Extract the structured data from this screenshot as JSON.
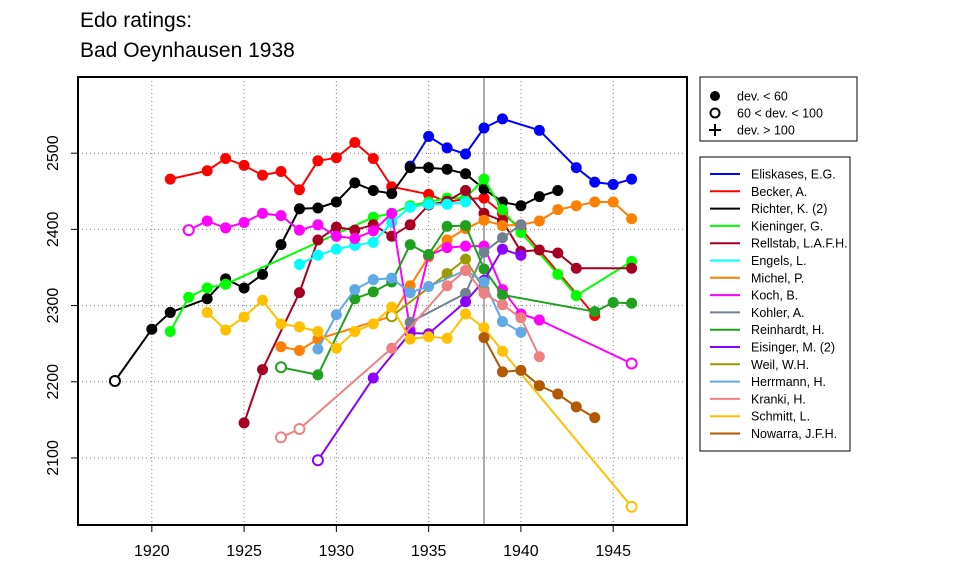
{
  "title_line1": "Edo ratings:",
  "title_line2": "Bad Oeynhausen 1938",
  "marker_legend": [
    {
      "symbol": "filled-circle",
      "label": "dev. < 60"
    },
    {
      "symbol": "open-circle",
      "label": "60 < dev. < 100"
    },
    {
      "symbol": "plus",
      "label": "dev. > 100"
    }
  ],
  "chart_data": {
    "type": "line",
    "title": "Edo ratings: Bad Oeynhausen 1938",
    "xlabel": "",
    "ylabel": "",
    "xlim": [
      1916,
      1949
    ],
    "ylim": [
      2012,
      2600
    ],
    "xticks": [
      1920,
      1925,
      1930,
      1935,
      1940,
      1945
    ],
    "yticks": [
      2100,
      2200,
      2300,
      2400,
      2500
    ],
    "grid": true,
    "legend_position": "right",
    "vline_x": 1938,
    "series": [
      {
        "name": "Eliskases, E.G.",
        "color": "#0000FF",
        "points": [
          [
            1934,
            2483
          ],
          [
            1935,
            2522
          ],
          [
            1936,
            2507
          ],
          [
            1937,
            2499
          ],
          [
            1938,
            2533
          ],
          [
            1939,
            2545
          ],
          [
            1941,
            2530
          ],
          [
            1943,
            2481
          ],
          [
            1944,
            2462
          ],
          [
            1945,
            2459
          ],
          [
            1946,
            2466
          ]
        ],
        "open": []
      },
      {
        "name": "Becker, A.",
        "color": "#FF0000",
        "points": [
          [
            1921,
            2466
          ],
          [
            1923,
            2477
          ],
          [
            1924,
            2493
          ],
          [
            1925,
            2484
          ],
          [
            1926,
            2471
          ],
          [
            1927,
            2476
          ],
          [
            1928,
            2452
          ],
          [
            1929,
            2490
          ],
          [
            1930,
            2494
          ],
          [
            1931,
            2514
          ],
          [
            1932,
            2493
          ],
          [
            1933,
            2456
          ],
          [
            1935,
            2446
          ],
          [
            1936,
            2436
          ],
          [
            1937,
            2440
          ],
          [
            1938,
            2441
          ],
          [
            1939,
            2421
          ],
          [
            1940,
            2401
          ],
          [
            1944,
            2287
          ]
        ],
        "open": []
      },
      {
        "name": "Richter, K. (2)",
        "color": "#000000",
        "points": [
          [
            1918,
            2201
          ],
          [
            1920,
            2269
          ],
          [
            1921,
            2291
          ],
          [
            1923,
            2309
          ],
          [
            1924,
            2335
          ],
          [
            1925,
            2323
          ],
          [
            1926,
            2341
          ],
          [
            1927,
            2380
          ],
          [
            1928,
            2427
          ],
          [
            1929,
            2428
          ],
          [
            1930,
            2436
          ],
          [
            1931,
            2461
          ],
          [
            1932,
            2451
          ],
          [
            1933,
            2447
          ],
          [
            1934,
            2481
          ],
          [
            1935,
            2481
          ],
          [
            1936,
            2479
          ],
          [
            1937,
            2473
          ],
          [
            1938,
            2453
          ],
          [
            1939,
            2436
          ],
          [
            1940,
            2431
          ],
          [
            1941,
            2443
          ],
          [
            1942,
            2451
          ]
        ],
        "open": [
          0
        ]
      },
      {
        "name": "Kieninger, G.",
        "color": "#00FF00",
        "points": [
          [
            1921,
            2266
          ],
          [
            1922,
            2311
          ],
          [
            1923,
            2323
          ],
          [
            1924,
            2328
          ],
          [
            1932,
            2416
          ],
          [
            1933,
            2421
          ],
          [
            1934,
            2431
          ],
          [
            1935,
            2436
          ],
          [
            1936,
            2441
          ],
          [
            1937,
            2441
          ],
          [
            1938,
            2466
          ],
          [
            1939,
            2426
          ],
          [
            1940,
            2396
          ],
          [
            1942,
            2341
          ],
          [
            1943,
            2313
          ],
          [
            1946,
            2358
          ]
        ],
        "open": []
      },
      {
        "name": "Rellstab, L.A.F.H.",
        "color": "#A50021",
        "points": [
          [
            1925,
            2146
          ],
          [
            1926,
            2216
          ],
          [
            1928,
            2317
          ],
          [
            1929,
            2386
          ],
          [
            1930,
            2403
          ],
          [
            1931,
            2399
          ],
          [
            1932,
            2406
          ],
          [
            1933,
            2391
          ],
          [
            1934,
            2406
          ],
          [
            1935,
            2432
          ],
          [
            1936,
            2437
          ],
          [
            1937,
            2451
          ],
          [
            1938,
            2421
          ],
          [
            1939,
            2411
          ],
          [
            1940,
            2371
          ],
          [
            1941,
            2373
          ],
          [
            1942,
            2369
          ],
          [
            1943,
            2349
          ],
          [
            1946,
            2349
          ]
        ],
        "open": []
      },
      {
        "name": "Engels, L.",
        "color": "#00FFFF",
        "points": [
          [
            1928,
            2354
          ],
          [
            1929,
            2366
          ],
          [
            1930,
            2374
          ],
          [
            1931,
            2379
          ],
          [
            1932,
            2383
          ],
          [
            1933,
            2409
          ],
          [
            1934,
            2429
          ],
          [
            1935,
            2433
          ],
          [
            1936,
            2433
          ],
          [
            1937,
            2436
          ]
        ],
        "open": []
      },
      {
        "name": "Michel, P.",
        "color": "#FF7F00",
        "points": [
          [
            1927,
            2246
          ],
          [
            1928,
            2241
          ],
          [
            1929,
            2256
          ],
          [
            1933,
            2286
          ],
          [
            1934,
            2326
          ],
          [
            1935,
            2364
          ],
          [
            1936,
            2386
          ],
          [
            1937,
            2401
          ],
          [
            1938,
            2412
          ],
          [
            1939,
            2405
          ],
          [
            1940,
            2406
          ],
          [
            1941,
            2411
          ],
          [
            1942,
            2426
          ],
          [
            1943,
            2431
          ],
          [
            1944,
            2436
          ],
          [
            1945,
            2436
          ],
          [
            1946,
            2414
          ]
        ],
        "open": []
      },
      {
        "name": "Koch, B.",
        "color": "#FF00FF",
        "points": [
          [
            1922,
            2399
          ],
          [
            1923,
            2411
          ],
          [
            1924,
            2402
          ],
          [
            1925,
            2409
          ],
          [
            1926,
            2421
          ],
          [
            1927,
            2418
          ],
          [
            1928,
            2399
          ],
          [
            1929,
            2406
          ],
          [
            1930,
            2391
          ],
          [
            1931,
            2388
          ],
          [
            1932,
            2398
          ],
          [
            1933,
            2421
          ],
          [
            1934,
            2268
          ],
          [
            1935,
            2366
          ],
          [
            1936,
            2376
          ],
          [
            1937,
            2378
          ],
          [
            1938,
            2378
          ],
          [
            1939,
            2321
          ],
          [
            1940,
            2289
          ],
          [
            1941,
            2281
          ],
          [
            1946,
            2224
          ]
        ],
        "open": [
          0,
          20
        ]
      },
      {
        "name": "Kohler, A.",
        "color": "#708090",
        "points": [
          [
            1934,
            2278
          ],
          [
            1937,
            2316
          ],
          [
            1938,
            2370
          ],
          [
            1939,
            2389
          ],
          [
            1940,
            2406
          ]
        ],
        "open": []
      },
      {
        "name": "Reinhardt, H.",
        "color": "#1FA01F",
        "points": [
          [
            1927,
            2219
          ],
          [
            1929,
            2209
          ],
          [
            1931,
            2309
          ],
          [
            1932,
            2318
          ],
          [
            1933,
            2331
          ],
          [
            1934,
            2380
          ],
          [
            1935,
            2367
          ],
          [
            1936,
            2404
          ],
          [
            1937,
            2405
          ],
          [
            1938,
            2348
          ],
          [
            1939,
            2314
          ],
          [
            1944,
            2292
          ],
          [
            1945,
            2304
          ],
          [
            1946,
            2303
          ]
        ],
        "open": [
          0
        ]
      },
      {
        "name": "Eisinger, M. (2)",
        "color": "#8B00FF",
        "points": [
          [
            1929,
            2097
          ],
          [
            1932,
            2205
          ],
          [
            1934,
            2264
          ],
          [
            1935,
            2263
          ],
          [
            1937,
            2305
          ],
          [
            1938,
            2333
          ],
          [
            1939,
            2374
          ],
          [
            1940,
            2366
          ]
        ],
        "open": [
          0
        ]
      },
      {
        "name": "Weil, W.H.",
        "color": "#9B9B00",
        "points": [
          [
            1933,
            2286
          ],
          [
            1936,
            2342
          ],
          [
            1937,
            2361
          ],
          [
            1938,
            2321
          ]
        ],
        "open": [
          0
        ]
      },
      {
        "name": "Herrmann, H.",
        "color": "#5EA9E6",
        "points": [
          [
            1929,
            2243
          ],
          [
            1930,
            2288
          ],
          [
            1931,
            2321
          ],
          [
            1932,
            2334
          ],
          [
            1933,
            2336
          ],
          [
            1934,
            2317
          ],
          [
            1935,
            2325
          ],
          [
            1937,
            2346
          ],
          [
            1938,
            2331
          ],
          [
            1939,
            2279
          ],
          [
            1940,
            2265
          ]
        ],
        "open": []
      },
      {
        "name": "Kranki, H.",
        "color": "#F08080",
        "points": [
          [
            1927,
            2127
          ],
          [
            1928,
            2138
          ],
          [
            1933,
            2244
          ],
          [
            1936,
            2326
          ],
          [
            1937,
            2346
          ],
          [
            1938,
            2316
          ],
          [
            1939,
            2301
          ],
          [
            1940,
            2284
          ],
          [
            1941,
            2233
          ]
        ],
        "open": [
          0,
          1
        ]
      },
      {
        "name": "Schmitt, L.",
        "color": "#FFC000",
        "points": [
          [
            1923,
            2291
          ],
          [
            1924,
            2268
          ],
          [
            1925,
            2285
          ],
          [
            1926,
            2307
          ],
          [
            1927,
            2276
          ],
          [
            1928,
            2272
          ],
          [
            1929,
            2266
          ],
          [
            1930,
            2244
          ],
          [
            1931,
            2266
          ],
          [
            1932,
            2276
          ],
          [
            1933,
            2298
          ],
          [
            1934,
            2256
          ],
          [
            1935,
            2259
          ],
          [
            1936,
            2257
          ],
          [
            1937,
            2289
          ],
          [
            1938,
            2271
          ],
          [
            1939,
            2240
          ],
          [
            1946,
            2036
          ]
        ],
        "open": [
          17
        ]
      },
      {
        "name": "Nowarra, J.F.H.",
        "color": "#B25900",
        "points": [
          [
            1938,
            2258
          ],
          [
            1939,
            2213
          ],
          [
            1940,
            2215
          ],
          [
            1941,
            2195
          ],
          [
            1942,
            2184
          ],
          [
            1943,
            2167
          ],
          [
            1944,
            2153
          ]
        ],
        "open": []
      }
    ]
  }
}
